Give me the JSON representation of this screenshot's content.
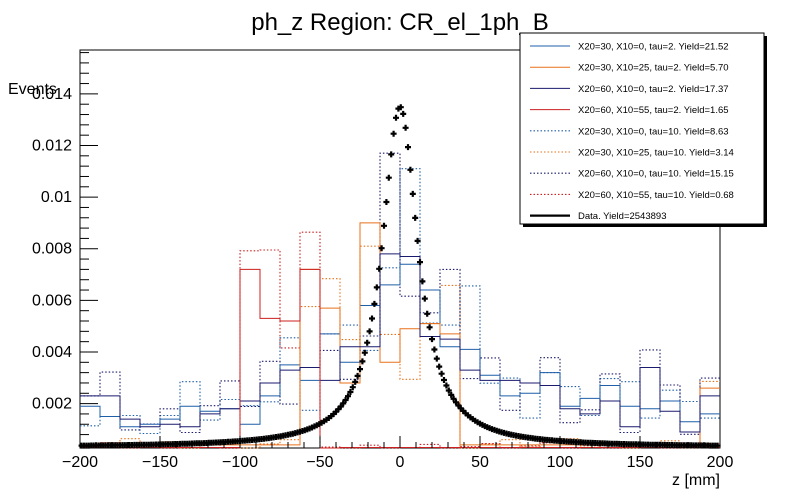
{
  "chart_data": {
    "type": "histogram",
    "title": "ph_z Region: CR_el_1ph_B",
    "xlabel": "z [mm]",
    "ylabel": "Events",
    "xlim": [
      -200,
      200
    ],
    "ylim": [
      0.00028,
      0.0157
    ],
    "x_ticks": [
      -200,
      -150,
      -100,
      -50,
      0,
      50,
      100,
      150,
      200
    ],
    "x_tick_labels": [
      "−200",
      "−150",
      "−100",
      "−50",
      "0",
      "50",
      "100",
      "150",
      "200"
    ],
    "y_ticks": [
      0.002,
      0.004,
      0.006,
      0.008,
      0.01,
      0.012,
      0.014
    ],
    "y_tick_labels": [
      "0.002",
      "0.004",
      "0.006",
      "0.008",
      "0.01",
      "0.012",
      "0.014"
    ],
    "bin_edges": [
      -200,
      -187.5,
      -175,
      -162.5,
      -150,
      -137.5,
      -125,
      -112.5,
      -100,
      -87.5,
      -75,
      -62.5,
      -50,
      -37.5,
      -25,
      -12.5,
      0,
      12.5,
      25,
      37.5,
      50,
      62.5,
      75,
      87.5,
      100,
      112.5,
      125,
      137.5,
      150,
      162.5,
      175,
      187.5,
      200
    ],
    "series": [
      {
        "name": "X20=30, X10=0, tau=2. Yield=21.52",
        "color": "#1f5fa8",
        "style": "solid",
        "values": [
          0.0019,
          0.0015,
          0.0011,
          0.0012,
          0.0014,
          0.0019,
          0.0017,
          0.0018,
          0.0012,
          0.0023,
          0.0035,
          0.0029,
          0.0047,
          0.0036,
          0.0058,
          0.0066,
          0.0074,
          0.0064,
          0.0042,
          0.0041,
          0.0031,
          0.0023,
          0.0024,
          0.0032,
          0.0019,
          0.0022,
          0.0027,
          0.0019,
          0.0018,
          0.0021,
          0.0013,
          0.0016
        ]
      },
      {
        "name": "X20=30, X10=25, tau=2. Yield=5.70",
        "color": "#e8701a",
        "style": "solid",
        "values": [
          0.0004,
          0.0004,
          0.0004,
          0.0004,
          0.0004,
          0.0004,
          0.0004,
          0.0004,
          0.0004,
          0.0004,
          0.0004,
          0.0072,
          0.0057,
          0.0028,
          0.009,
          0.0036,
          0.0049,
          0.0051,
          0.0047,
          0.0004,
          0.0004,
          0.0004,
          0.0004,
          0.0004,
          0.0004,
          0.0004,
          0.0004,
          0.0004,
          0.0004,
          0.0004,
          0.0004,
          0.0026
        ]
      },
      {
        "name": "X20=60, X10=0, tau=2. Yield=17.37",
        "color": "#1a1a6e",
        "style": "solid",
        "values": [
          0.0023,
          0.0023,
          0.0014,
          0.0011,
          0.0012,
          0.0011,
          0.0016,
          0.0018,
          0.0021,
          0.0028,
          0.0033,
          0.0034,
          0.0029,
          0.0042,
          0.0042,
          0.0078,
          0.0077,
          0.0046,
          0.0045,
          0.0033,
          0.0029,
          0.0029,
          0.0028,
          0.0027,
          0.0018,
          0.0016,
          0.0021,
          0.0011,
          0.0034,
          0.0017,
          0.0009,
          0.0023
        ]
      },
      {
        "name": "X20=60, X10=55, tau=2. Yield=1.65",
        "color": "#cc1f1f",
        "style": "solid",
        "values": [
          0.0003,
          0.0003,
          0.0003,
          0.0003,
          0.0003,
          0.0003,
          0.0003,
          0.0003,
          0.0072,
          0.0053,
          0.0052,
          0.0072,
          0.0002,
          0.0003,
          0.0003,
          0.0003,
          0.0003,
          0.0003,
          0.0003,
          0.0003,
          0.0003,
          0.0003,
          0.0003,
          0.0003,
          0.0003,
          0.0003,
          0.0003,
          0.0003,
          0.0003,
          0.0003,
          0.0003,
          0.0003
        ]
      }
    ],
    "dotted_series": [
      {
        "name": "X20=30, X10=0, tau=10. Yield=8.63",
        "color": "#1f5fa8"
      },
      {
        "name": "X20=30, X10=25, tau=10. Yield=3.14",
        "color": "#e8701a"
      },
      {
        "name": "X20=60, X10=0, tau=10. Yield=15.15",
        "color": "#1a1a6e"
      },
      {
        "name": "X20=60, X10=55, tau=10. Yield=0.68",
        "color": "#cc1f1f"
      }
    ],
    "data_series": {
      "name": "Data. Yield=2543893",
      "color": "#000000",
      "peak": 0.0135,
      "center": 0,
      "width": 22
    }
  }
}
